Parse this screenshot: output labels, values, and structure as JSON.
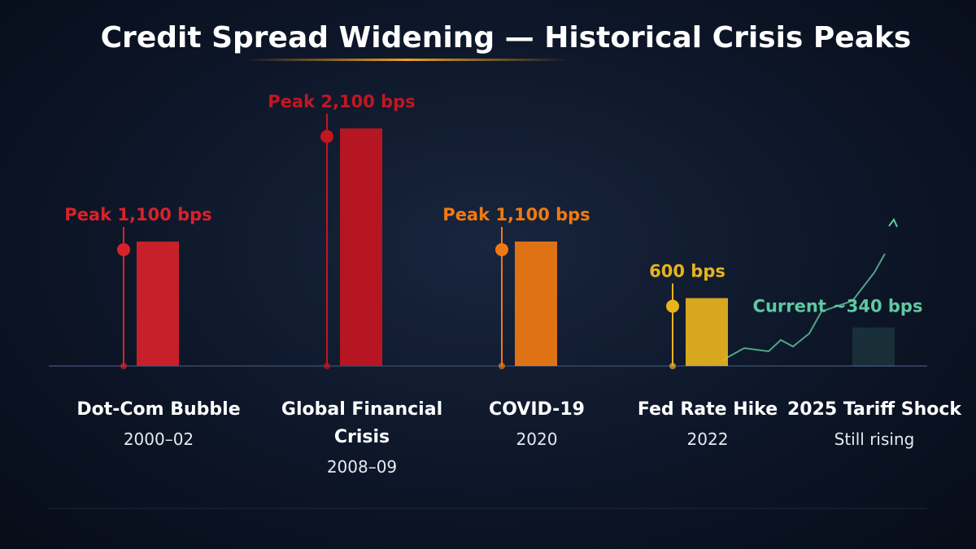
{
  "chart_data": {
    "type": "bar",
    "title": "Credit Spread Widening — Historical Crisis Peaks",
    "categories": [
      "Dot-Com Bubble",
      "Global Financial Crisis",
      "COVID-19",
      "Fed Rate Hike",
      "2025 Tariff Shock"
    ],
    "periods": [
      "2000–02",
      "2008–09",
      "2020",
      "2022",
      "Still rising"
    ],
    "values": [
      1100,
      2100,
      1100,
      600,
      340
    ],
    "value_labels": [
      "Peak 1,100 bps",
      "Peak 2,100 bps",
      "Peak 1,100 bps",
      "600 bps",
      "Current ~340 bps"
    ],
    "colors": [
      "#d8222a",
      "#c3161f",
      "#f07a12",
      "#e8b41c",
      "#5fc9a0"
    ],
    "ylim": [
      0,
      2300
    ]
  }
}
